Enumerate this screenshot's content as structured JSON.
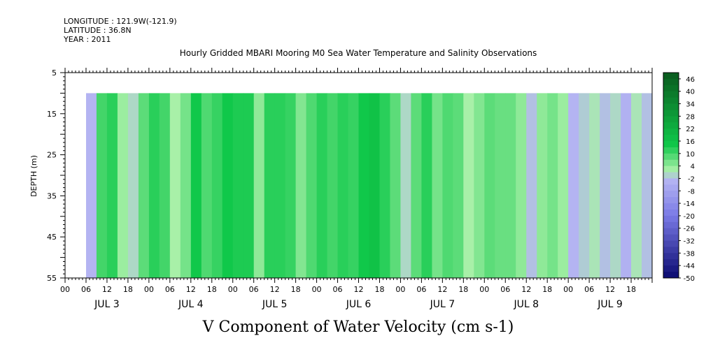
{
  "header": {
    "longitude": "LONGITUDE : 121.9W(-121.9)",
    "latitude": "LATITUDE : 36.8N",
    "year": "YEAR : 2011"
  },
  "chart_data": {
    "type": "heatmap",
    "title": "Hourly Gridded MBARI Mooring M0 Sea Water Temperature and Salinity Observations",
    "footer_label": "V Component of Water Velocity (cm s-1)",
    "ylabel": "DEPTH (m)",
    "y_ticks": [
      "5",
      "15",
      "25",
      "35",
      "45",
      "55"
    ],
    "y_range": [
      5,
      55
    ],
    "data_depth_range": [
      10,
      55
    ],
    "x_hour_ticks": [
      "00",
      "06",
      "12",
      "18",
      "00",
      "06",
      "12",
      "18",
      "00",
      "06",
      "12",
      "18",
      "00",
      "06",
      "12",
      "18",
      "00",
      "06",
      "12",
      "18",
      "00",
      "06",
      "12",
      "18",
      "00",
      "06",
      "12",
      "18"
    ],
    "x_day_labels": [
      "JUL 3",
      "JUL 4",
      "JUL 5",
      "JUL 6",
      "JUL 7",
      "JUL 8",
      "JUL 9"
    ],
    "time_range_hours": [
      0,
      168
    ],
    "data_start_hour": 6,
    "colorbar": {
      "labels": [
        "46",
        "40",
        "34",
        "28",
        "22",
        "16",
        "10",
        "4",
        "-2",
        "-8",
        "-14",
        "-20",
        "-26",
        "-32",
        "-38",
        "-44",
        "-50"
      ],
      "range": [
        -50,
        49
      ],
      "colors": {
        "dark_green": "#0a5a1e",
        "green": "#10c84a",
        "light_green": "#a8f0a8",
        "light_purple": "#b4b4f2",
        "purple": "#7a7ae6",
        "dark_blue": "#0a0a70"
      }
    },
    "columns": [
      {
        "hour": 6,
        "v": -3
      },
      {
        "hour": 9,
        "v": 10
      },
      {
        "hour": 12,
        "v": 12
      },
      {
        "hour": 15,
        "v": 3
      },
      {
        "hour": 18,
        "v": 0
      },
      {
        "hour": 21,
        "v": 8
      },
      {
        "hour": 24,
        "v": 12
      },
      {
        "hour": 27,
        "v": 10
      },
      {
        "hour": 30,
        "v": 2
      },
      {
        "hour": 33,
        "v": 6
      },
      {
        "hour": 36,
        "v": 14
      },
      {
        "hour": 39,
        "v": 9
      },
      {
        "hour": 42,
        "v": 11
      },
      {
        "hour": 45,
        "v": 14
      },
      {
        "hour": 48,
        "v": 13
      },
      {
        "hour": 51,
        "v": 13
      },
      {
        "hour": 54,
        "v": 4
      },
      {
        "hour": 57,
        "v": 12
      },
      {
        "hour": 60,
        "v": 12
      },
      {
        "hour": 63,
        "v": 11
      },
      {
        "hour": 66,
        "v": 5
      },
      {
        "hour": 69,
        "v": 9
      },
      {
        "hour": 72,
        "v": 12
      },
      {
        "hour": 75,
        "v": 10
      },
      {
        "hour": 78,
        "v": 12
      },
      {
        "hour": 81,
        "v": 11
      },
      {
        "hour": 84,
        "v": 14
      },
      {
        "hour": 87,
        "v": 16
      },
      {
        "hour": 90,
        "v": 12
      },
      {
        "hour": 93,
        "v": 8
      },
      {
        "hour": 96,
        "v": 0
      },
      {
        "hour": 99,
        "v": 8
      },
      {
        "hour": 102,
        "v": 12
      },
      {
        "hour": 105,
        "v": 6
      },
      {
        "hour": 108,
        "v": 9
      },
      {
        "hour": 111,
        "v": 8
      },
      {
        "hour": 114,
        "v": 2
      },
      {
        "hour": 117,
        "v": 5
      },
      {
        "hour": 120,
        "v": 8
      },
      {
        "hour": 123,
        "v": 7
      },
      {
        "hour": 126,
        "v": 7
      },
      {
        "hour": 129,
        "v": 4
      },
      {
        "hour": 132,
        "v": -2
      },
      {
        "hour": 135,
        "v": 4
      },
      {
        "hour": 138,
        "v": 6
      },
      {
        "hour": 141,
        "v": 3
      },
      {
        "hour": 144,
        "v": -3
      },
      {
        "hour": 147,
        "v": -1
      },
      {
        "hour": 150,
        "v": 1
      },
      {
        "hour": 153,
        "v": -2
      },
      {
        "hour": 156,
        "v": 0
      },
      {
        "hour": 159,
        "v": -4
      },
      {
        "hour": 162,
        "v": 1
      },
      {
        "hour": 165,
        "v": -2
      }
    ]
  }
}
